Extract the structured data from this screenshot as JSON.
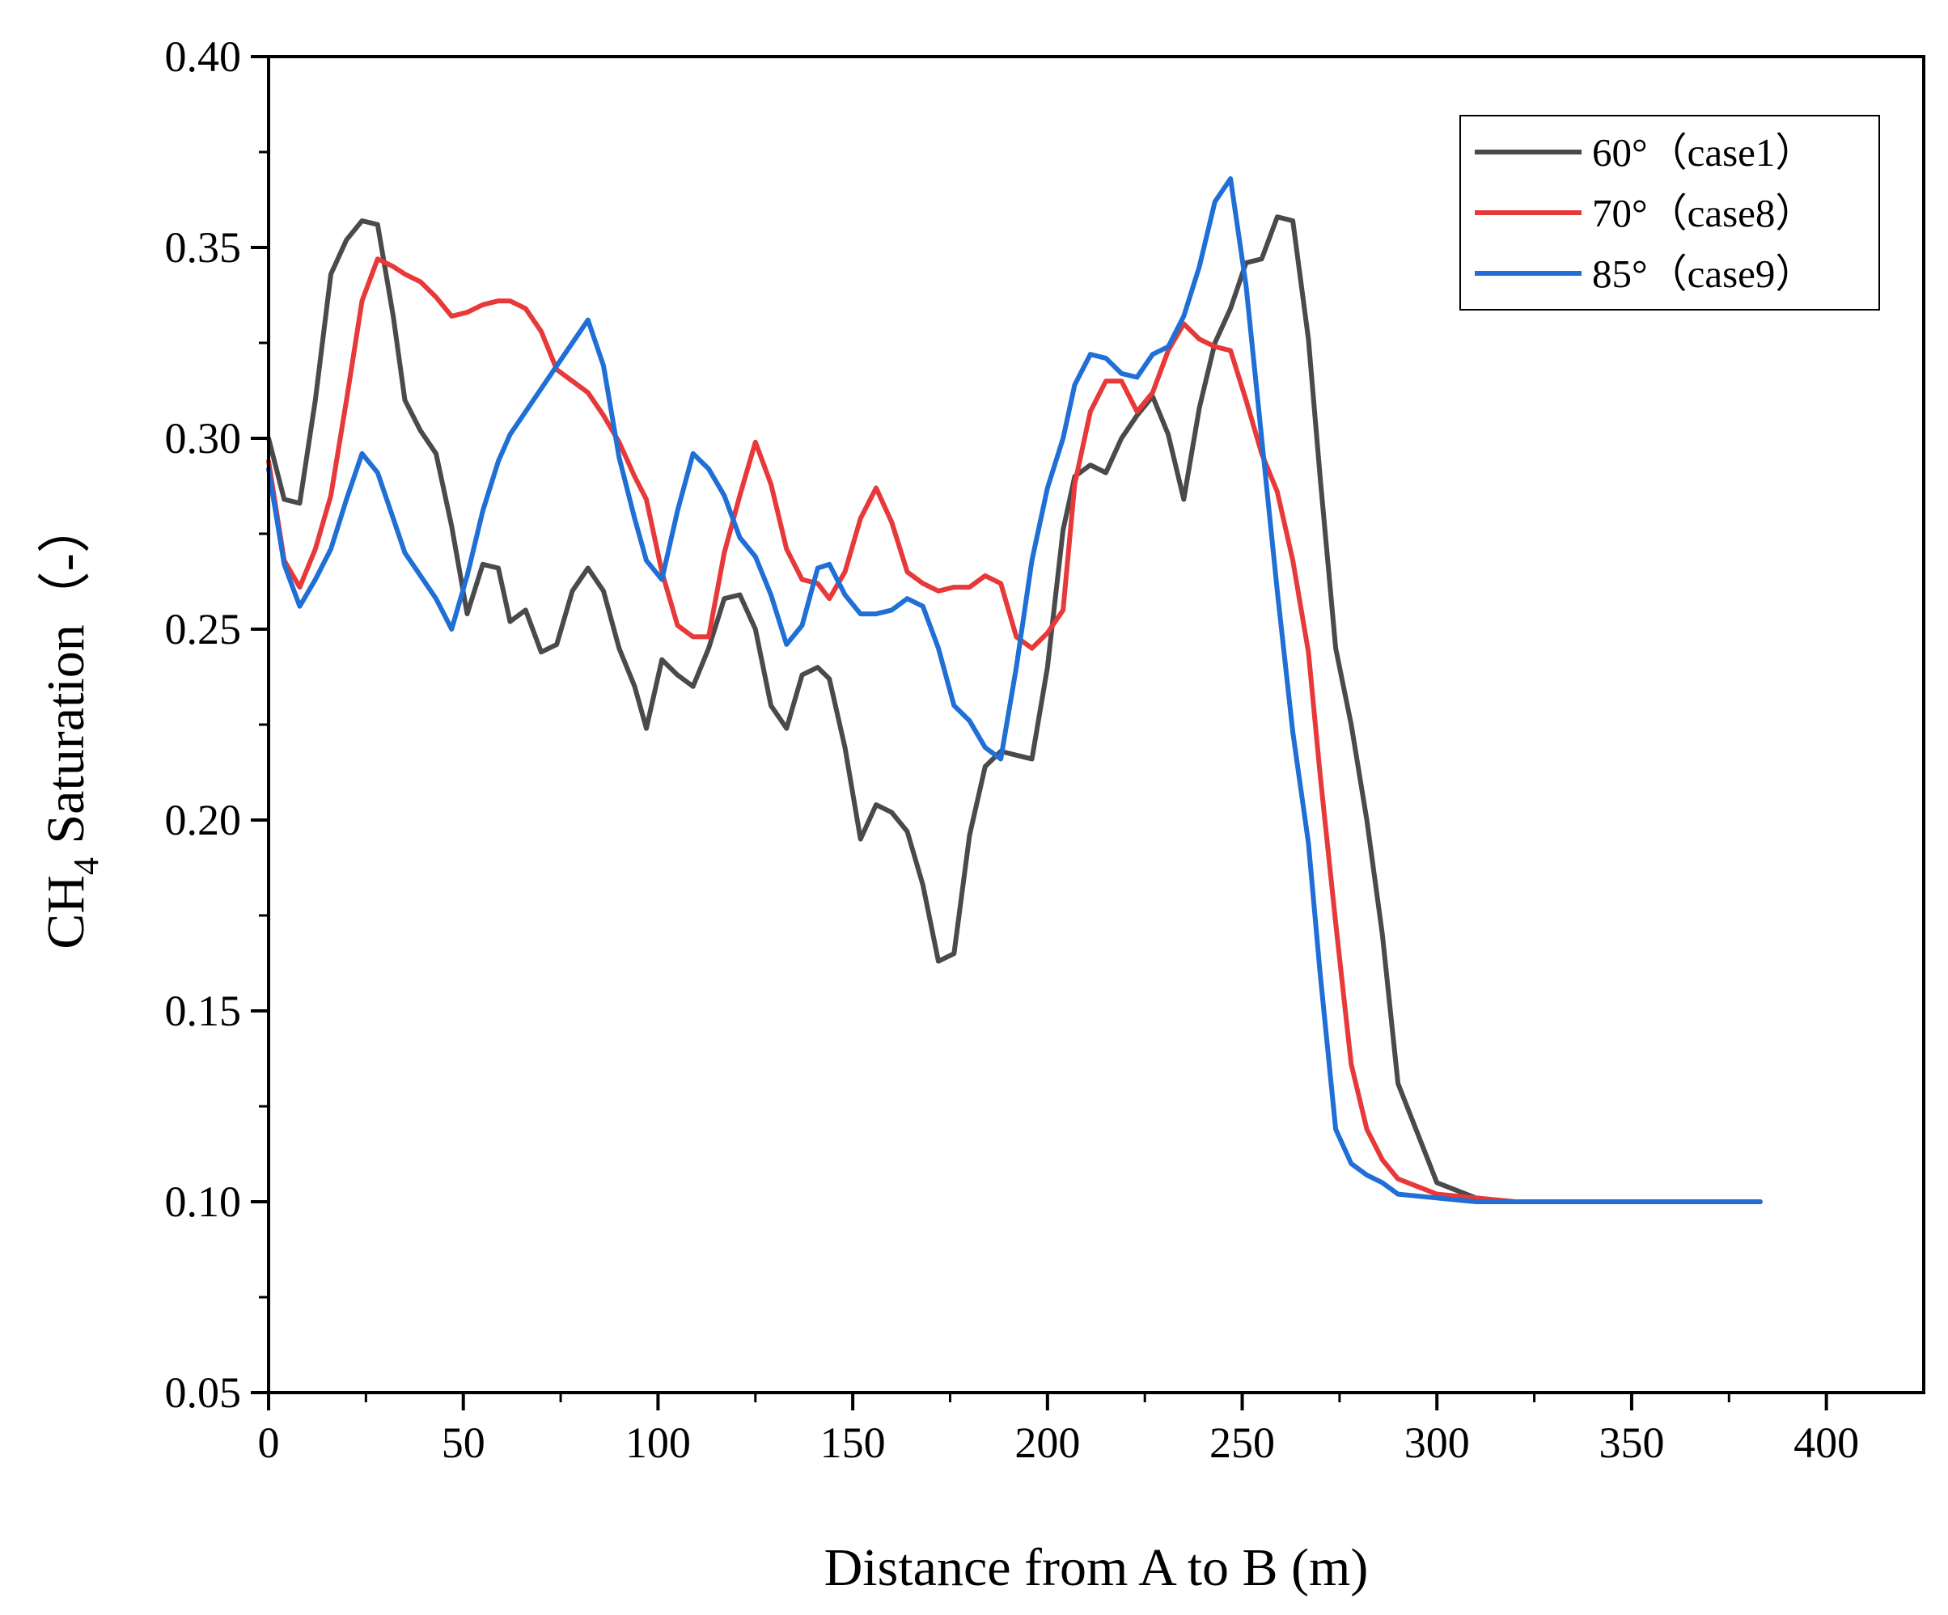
{
  "chart_data": {
    "type": "line",
    "title": "",
    "xlabel": "Distance from A to B (m)",
    "ylabel": {
      "main": "CH",
      "subscript": "4",
      "rest": " Saturation（-）"
    },
    "xlim": [
      0,
      425
    ],
    "ylim": [
      0.05,
      0.4
    ],
    "xticks": [
      0,
      50,
      100,
      150,
      200,
      250,
      300,
      350,
      400
    ],
    "xtick_labels": [
      "0",
      "50",
      "100",
      "150",
      "200",
      "250",
      "300",
      "350",
      "400"
    ],
    "yticks": [
      0.05,
      0.1,
      0.15,
      0.2,
      0.25,
      0.3,
      0.35,
      0.4
    ],
    "ytick_labels": [
      "0.05",
      "0.10",
      "0.15",
      "0.20",
      "0.25",
      "0.30",
      "0.35",
      "0.40"
    ],
    "legend_position": "top-right",
    "grid": false,
    "series": [
      {
        "name": "60°（case1）",
        "color": "#4a4a4a",
        "x": [
          0,
          4,
          8,
          12,
          16,
          20,
          24,
          28,
          32,
          35,
          39,
          43,
          47,
          51,
          55,
          59,
          62,
          66,
          70,
          74,
          78,
          82,
          86,
          90,
          94,
          97,
          101,
          105,
          109,
          113,
          117,
          121,
          125,
          129,
          133,
          137,
          141,
          144,
          148,
          152,
          156,
          160,
          164,
          168,
          172,
          176,
          180,
          184,
          188,
          192,
          196,
          200,
          204,
          207,
          211,
          215,
          219,
          223,
          227,
          231,
          235,
          239,
          243,
          247,
          251,
          255,
          259,
          263,
          267,
          270,
          274,
          278,
          282,
          286,
          290,
          300,
          310,
          320,
          340,
          360,
          383
        ],
        "values": [
          0.3,
          0.284,
          0.283,
          0.31,
          0.343,
          0.352,
          0.357,
          0.356,
          0.332,
          0.31,
          0.302,
          0.296,
          0.277,
          0.254,
          0.267,
          0.266,
          0.252,
          0.255,
          0.244,
          0.246,
          0.26,
          0.266,
          0.26,
          0.245,
          0.235,
          0.224,
          0.242,
          0.238,
          0.235,
          0.245,
          0.258,
          0.259,
          0.25,
          0.23,
          0.224,
          0.238,
          0.24,
          0.237,
          0.219,
          0.195,
          0.204,
          0.202,
          0.197,
          0.183,
          0.163,
          0.165,
          0.196,
          0.214,
          0.218,
          0.217,
          0.216,
          0.24,
          0.276,
          0.29,
          0.293,
          0.291,
          0.3,
          0.306,
          0.311,
          0.301,
          0.284,
          0.308,
          0.325,
          0.334,
          0.346,
          0.347,
          0.358,
          0.357,
          0.326,
          0.29,
          0.245,
          0.225,
          0.2,
          0.17,
          0.131,
          0.105,
          0.101,
          0.1,
          0.1,
          0.1,
          0.1
        ]
      },
      {
        "name": "70°（case8）",
        "color": "#e8393a",
        "x": [
          0,
          4,
          8,
          12,
          16,
          20,
          24,
          28,
          32,
          35,
          39,
          43,
          47,
          51,
          55,
          59,
          62,
          66,
          70,
          74,
          78,
          82,
          86,
          90,
          94,
          97,
          101,
          105,
          109,
          113,
          117,
          121,
          125,
          129,
          133,
          137,
          141,
          144,
          148,
          152,
          156,
          160,
          164,
          168,
          172,
          176,
          180,
          184,
          188,
          192,
          196,
          200,
          204,
          207,
          211,
          215,
          219,
          223,
          227,
          231,
          235,
          239,
          243,
          247,
          251,
          255,
          259,
          263,
          267,
          270,
          274,
          278,
          282,
          286,
          290,
          300,
          310,
          320,
          340,
          360,
          383
        ],
        "values": [
          0.294,
          0.268,
          0.261,
          0.271,
          0.285,
          0.31,
          0.336,
          0.347,
          0.345,
          0.343,
          0.341,
          0.337,
          0.332,
          0.333,
          0.335,
          0.336,
          0.336,
          0.334,
          0.328,
          0.318,
          0.315,
          0.312,
          0.306,
          0.299,
          0.29,
          0.284,
          0.265,
          0.251,
          0.248,
          0.248,
          0.27,
          0.285,
          0.299,
          0.288,
          0.271,
          0.263,
          0.262,
          0.258,
          0.265,
          0.279,
          0.287,
          0.278,
          0.265,
          0.262,
          0.26,
          0.261,
          0.261,
          0.264,
          0.262,
          0.248,
          0.245,
          0.249,
          0.255,
          0.288,
          0.307,
          0.315,
          0.315,
          0.307,
          0.312,
          0.323,
          0.33,
          0.326,
          0.324,
          0.323,
          0.31,
          0.296,
          0.286,
          0.268,
          0.244,
          0.212,
          0.173,
          0.136,
          0.119,
          0.111,
          0.106,
          0.102,
          0.101,
          0.1,
          0.1,
          0.1,
          0.1
        ]
      },
      {
        "name": "85°（case9）",
        "color": "#1f6fd6",
        "x": [
          0,
          4,
          8,
          12,
          16,
          20,
          24,
          28,
          32,
          35,
          39,
          43,
          47,
          51,
          55,
          59,
          62,
          66,
          70,
          74,
          78,
          82,
          86,
          90,
          94,
          97,
          101,
          105,
          109,
          113,
          117,
          121,
          125,
          129,
          133,
          137,
          141,
          144,
          148,
          152,
          156,
          160,
          164,
          168,
          172,
          176,
          180,
          184,
          188,
          192,
          196,
          200,
          204,
          207,
          211,
          215,
          219,
          223,
          227,
          231,
          235,
          239,
          243,
          247,
          251,
          255,
          259,
          263,
          267,
          270,
          274,
          278,
          282,
          286,
          290,
          300,
          310,
          320,
          340,
          360,
          383
        ],
        "values": [
          0.292,
          0.267,
          0.256,
          0.263,
          0.271,
          0.284,
          0.296,
          0.291,
          0.279,
          0.27,
          0.264,
          0.258,
          0.25,
          0.264,
          0.281,
          0.294,
          0.301,
          0.307,
          0.313,
          0.319,
          0.325,
          0.331,
          0.319,
          0.295,
          0.279,
          0.268,
          0.263,
          0.281,
          0.296,
          0.292,
          0.285,
          0.274,
          0.269,
          0.259,
          0.246,
          0.251,
          0.266,
          0.267,
          0.259,
          0.254,
          0.254,
          0.255,
          0.258,
          0.256,
          0.245,
          0.23,
          0.226,
          0.219,
          0.216,
          0.24,
          0.268,
          0.287,
          0.3,
          0.314,
          0.322,
          0.321,
          0.317,
          0.316,
          0.322,
          0.324,
          0.332,
          0.345,
          0.362,
          0.368,
          0.34,
          0.3,
          0.26,
          0.223,
          0.194,
          0.16,
          0.119,
          0.11,
          0.107,
          0.105,
          0.102,
          0.101,
          0.1,
          0.1,
          0.1,
          0.1,
          0.1
        ]
      }
    ]
  }
}
